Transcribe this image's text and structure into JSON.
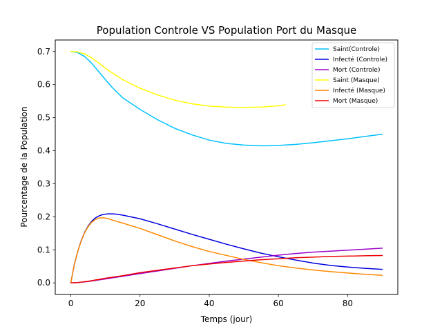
{
  "chart_data": {
    "type": "line",
    "title": "Population Controle VS Population Port du Masque",
    "xlabel": "Temps (jour)",
    "ylabel": "Pourcentage de la Population",
    "xlim": [
      -4.5,
      94.5
    ],
    "ylim": [
      -0.035,
      0.735
    ],
    "xticks": [
      0,
      20,
      40,
      60,
      80
    ],
    "yticks": [
      0.0,
      0.1,
      0.2,
      0.3,
      0.4,
      0.5,
      0.6,
      0.7
    ],
    "xtick_labels": [
      "0",
      "20",
      "40",
      "60",
      "80"
    ],
    "ytick_labels": [
      "0.0",
      "0.1",
      "0.2",
      "0.3",
      "0.4",
      "0.5",
      "0.6",
      "0.7"
    ],
    "grid": false,
    "legend_position": "top-right",
    "series": [
      {
        "name": "Saint(Controle)",
        "color": "#00c0ff",
        "x": [
          0,
          2,
          4,
          6,
          8,
          10,
          12,
          15,
          20,
          25,
          30,
          35,
          40,
          45,
          50,
          55,
          57,
          60,
          65,
          70,
          75,
          80,
          85,
          90
        ],
        "values": [
          0.7,
          0.697,
          0.685,
          0.665,
          0.64,
          0.615,
          0.591,
          0.56,
          0.525,
          0.494,
          0.468,
          0.448,
          0.432,
          0.422,
          0.417,
          0.415,
          0.415,
          0.416,
          0.419,
          0.424,
          0.43,
          0.436,
          0.443,
          0.45
        ]
      },
      {
        "name": "Infecté (Controle)",
        "color": "#0000dd",
        "x": [
          0,
          1,
          2,
          3,
          4,
          5,
          6,
          7,
          8,
          9,
          10,
          11,
          12,
          13,
          15,
          20,
          25,
          30,
          35,
          40,
          45,
          50,
          55,
          60,
          65,
          70,
          75,
          80,
          85,
          90
        ],
        "values": [
          0.0,
          0.055,
          0.095,
          0.128,
          0.153,
          0.172,
          0.186,
          0.196,
          0.202,
          0.206,
          0.208,
          0.209,
          0.209,
          0.208,
          0.205,
          0.194,
          0.179,
          0.163,
          0.147,
          0.132,
          0.117,
          0.103,
          0.09,
          0.079,
          0.069,
          0.06,
          0.053,
          0.048,
          0.044,
          0.041
        ]
      },
      {
        "name": "Mort (Controle)",
        "color": "#9900cc",
        "x": [
          0,
          2,
          5,
          10,
          15,
          20,
          25,
          30,
          35,
          40,
          45,
          50,
          55,
          60,
          65,
          70,
          75,
          80,
          85,
          90
        ],
        "values": [
          0.0,
          0.001,
          0.004,
          0.012,
          0.02,
          0.028,
          0.036,
          0.044,
          0.052,
          0.059,
          0.066,
          0.072,
          0.078,
          0.084,
          0.089,
          0.093,
          0.096,
          0.099,
          0.102,
          0.105
        ]
      },
      {
        "name": "Saint (Masque)",
        "color": "#ffff00",
        "x": [
          0,
          2,
          4,
          6,
          8,
          10,
          12,
          15,
          20,
          25,
          30,
          35,
          40,
          45,
          48,
          50,
          55,
          60,
          62
        ],
        "values": [
          0.7,
          0.699,
          0.693,
          0.681,
          0.666,
          0.65,
          0.635,
          0.615,
          0.589,
          0.569,
          0.553,
          0.542,
          0.535,
          0.532,
          0.531,
          0.531,
          0.532,
          0.536,
          0.539
        ]
      },
      {
        "name": "Infecté (Masque)",
        "color": "#ff8800",
        "x": [
          0,
          1,
          2,
          3,
          4,
          5,
          6,
          7,
          8,
          9,
          10,
          11,
          12,
          15,
          20,
          25,
          30,
          35,
          40,
          45,
          50,
          55,
          60,
          65,
          70,
          75,
          80,
          85,
          90
        ],
        "values": [
          0.0,
          0.055,
          0.095,
          0.127,
          0.152,
          0.17,
          0.183,
          0.191,
          0.196,
          0.197,
          0.196,
          0.194,
          0.19,
          0.181,
          0.165,
          0.146,
          0.127,
          0.11,
          0.095,
          0.083,
          0.071,
          0.061,
          0.052,
          0.045,
          0.039,
          0.034,
          0.03,
          0.026,
          0.023
        ]
      },
      {
        "name": "Mort (Masque)",
        "color": "#ee0000",
        "x": [
          0,
          2,
          5,
          10,
          15,
          20,
          25,
          30,
          35,
          40,
          45,
          50,
          55,
          60,
          65,
          70,
          75,
          80,
          85,
          90
        ],
        "values": [
          0.0,
          0.001,
          0.005,
          0.014,
          0.022,
          0.031,
          0.038,
          0.045,
          0.052,
          0.057,
          0.062,
          0.066,
          0.07,
          0.073,
          0.076,
          0.078,
          0.08,
          0.081,
          0.082,
          0.083
        ]
      }
    ]
  }
}
